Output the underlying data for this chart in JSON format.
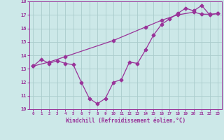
{
  "xlabel": "Windchill (Refroidissement éolien,°C)",
  "line1_x": [
    0,
    1,
    2,
    3,
    4,
    5,
    6,
    7,
    8,
    9,
    10,
    11,
    12,
    13,
    14,
    15,
    16,
    17,
    18,
    19,
    20,
    21,
    22,
    23
  ],
  "line1_y": [
    13.2,
    13.7,
    13.4,
    13.6,
    13.4,
    13.3,
    12.0,
    10.8,
    10.4,
    10.8,
    12.0,
    12.2,
    13.5,
    13.4,
    14.4,
    15.5,
    16.3,
    16.7,
    17.1,
    17.5,
    17.3,
    17.7,
    17.0,
    17.1
  ],
  "line2_x": [
    0,
    2,
    4,
    10,
    14,
    16,
    18,
    20,
    21,
    22,
    23
  ],
  "line2_y": [
    13.2,
    13.5,
    13.9,
    15.1,
    16.1,
    16.6,
    17.0,
    17.2,
    17.05,
    17.05,
    17.1
  ],
  "line_color": "#993399",
  "bg_color": "#cce8e8",
  "plot_bg_color": "#cce8e8",
  "ylim": [
    10,
    18
  ],
  "xlim": [
    -0.5,
    23.5
  ],
  "yticks": [
    10,
    11,
    12,
    13,
    14,
    15,
    16,
    17,
    18
  ],
  "xticks": [
    0,
    1,
    2,
    3,
    4,
    5,
    6,
    7,
    8,
    9,
    10,
    11,
    12,
    13,
    14,
    15,
    16,
    17,
    18,
    19,
    20,
    21,
    22,
    23
  ],
  "grid_color": "#aacccc",
  "tick_color": "#993399",
  "label_color": "#993399"
}
